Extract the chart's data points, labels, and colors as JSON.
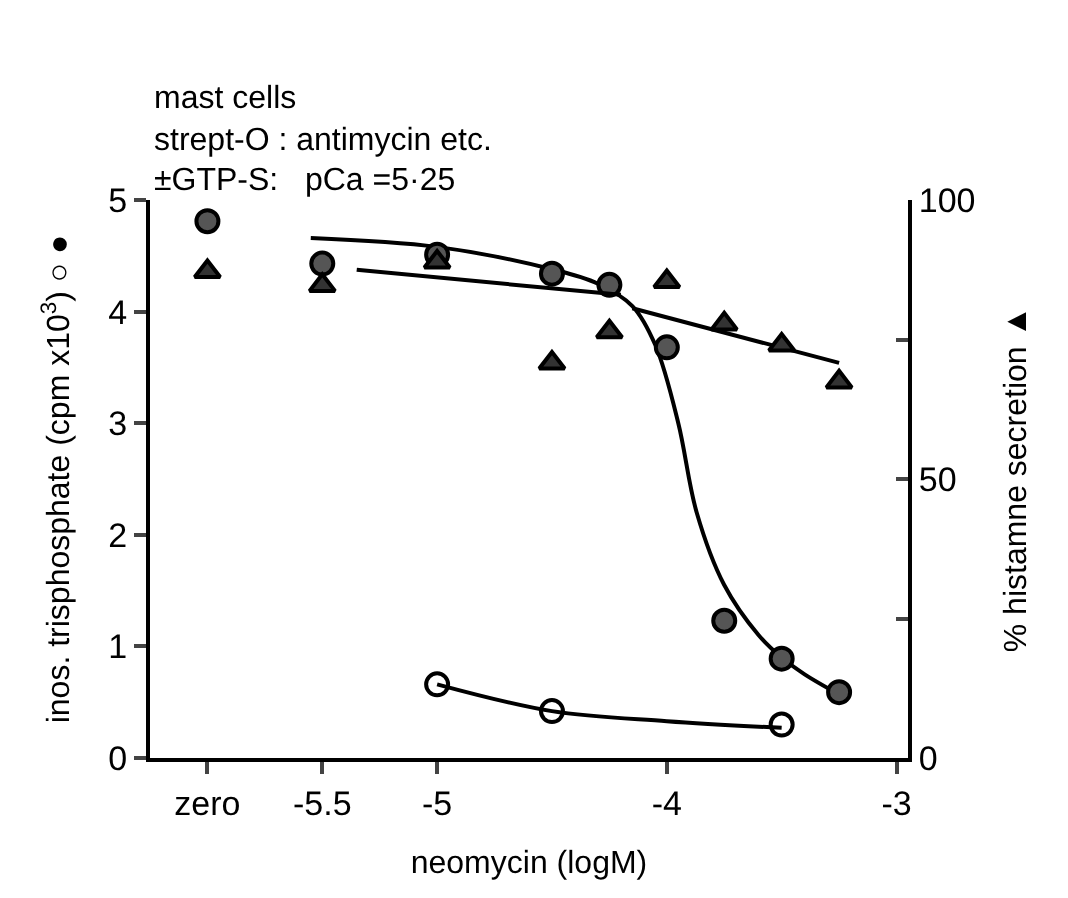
{
  "chart_data": {
    "type": "scatter",
    "annotations": [
      "mast cells",
      "strept-O : antimycin etc.",
      "±GTP-S:   pCa =5·25"
    ],
    "xlabel": "neomycin (logM)",
    "ylabel": "inos. trisphosphate (cpm x10$^{3}$) ○ ●",
    "y2label": "% histamne secretion ▲",
    "xlim": [
      -6.25,
      -2.95
    ],
    "xticks": [
      {
        "value": -6,
        "label": "zero"
      },
      {
        "value": -5.5,
        "label": "-5.5"
      },
      -5,
      -4,
      -3
    ],
    "ylim": [
      0,
      5
    ],
    "yticks": [
      0,
      1,
      2,
      3,
      4,
      5
    ],
    "y2lim": [
      0,
      100
    ],
    "y2ticks": [
      0,
      {
        "value": 25,
        "label": null
      },
      50,
      {
        "value": 75,
        "label": null
      },
      100
    ],
    "series": [
      {
        "type": "line",
        "color": "#000000",
        "marker": "none",
        "x": [
          -5.55,
          -5,
          -4.5,
          -4.3,
          -4.15,
          -4.05,
          -3.95,
          -3.87,
          -3.75,
          -3.6,
          -3.5,
          -3.4,
          -3.25
        ],
        "values": [
          4.66,
          4.58,
          4.38,
          4.25,
          4.05,
          3.7,
          3.0,
          2.2,
          1.55,
          1.1,
          0.9,
          0.75,
          0.57
        ]
      },
      {
        "type": "line",
        "color": "#000000",
        "marker": "none",
        "x": [
          -5,
          -4.5,
          -4,
          -3.5
        ],
        "values": [
          0.66,
          0.42,
          0.33,
          0.27
        ]
      },
      {
        "type": "line",
        "color": "#000000",
        "marker": "none",
        "axis": "y2",
        "x": [
          -5.35,
          -4.2
        ],
        "values": [
          87.5,
          83.0
        ]
      },
      {
        "type": "line",
        "color": "#000000",
        "marker": "none",
        "axis": "y2",
        "x": [
          -4.15,
          -3.25
        ],
        "values": [
          80.6,
          70.8
        ]
      },
      {
        "color": "#555555",
        "marker": "circle",
        "x": [
          -6,
          -5.5,
          -5,
          -4.5,
          -4.25,
          -4,
          -3.75,
          -3.5,
          -3.25
        ],
        "values": [
          4.81,
          4.43,
          4.51,
          4.34,
          4.24,
          3.68,
          1.23,
          0.89,
          0.59
        ]
      },
      {
        "color": "#000000",
        "marker": "circle-open",
        "x": [
          -5,
          -4.5,
          -3.5
        ],
        "values": [
          0.66,
          0.42,
          0.3
        ]
      },
      {
        "color": "#333333",
        "marker": "triangle",
        "axis": "y2",
        "x": [
          -6,
          -5.5,
          -5,
          -4.5,
          -4.25,
          -4,
          -3.75,
          -3.5,
          -3.25
        ],
        "values": [
          87.2,
          84.7,
          88.9,
          70.8,
          76.4,
          85.4,
          77.8,
          74.0,
          67.4
        ]
      }
    ]
  }
}
